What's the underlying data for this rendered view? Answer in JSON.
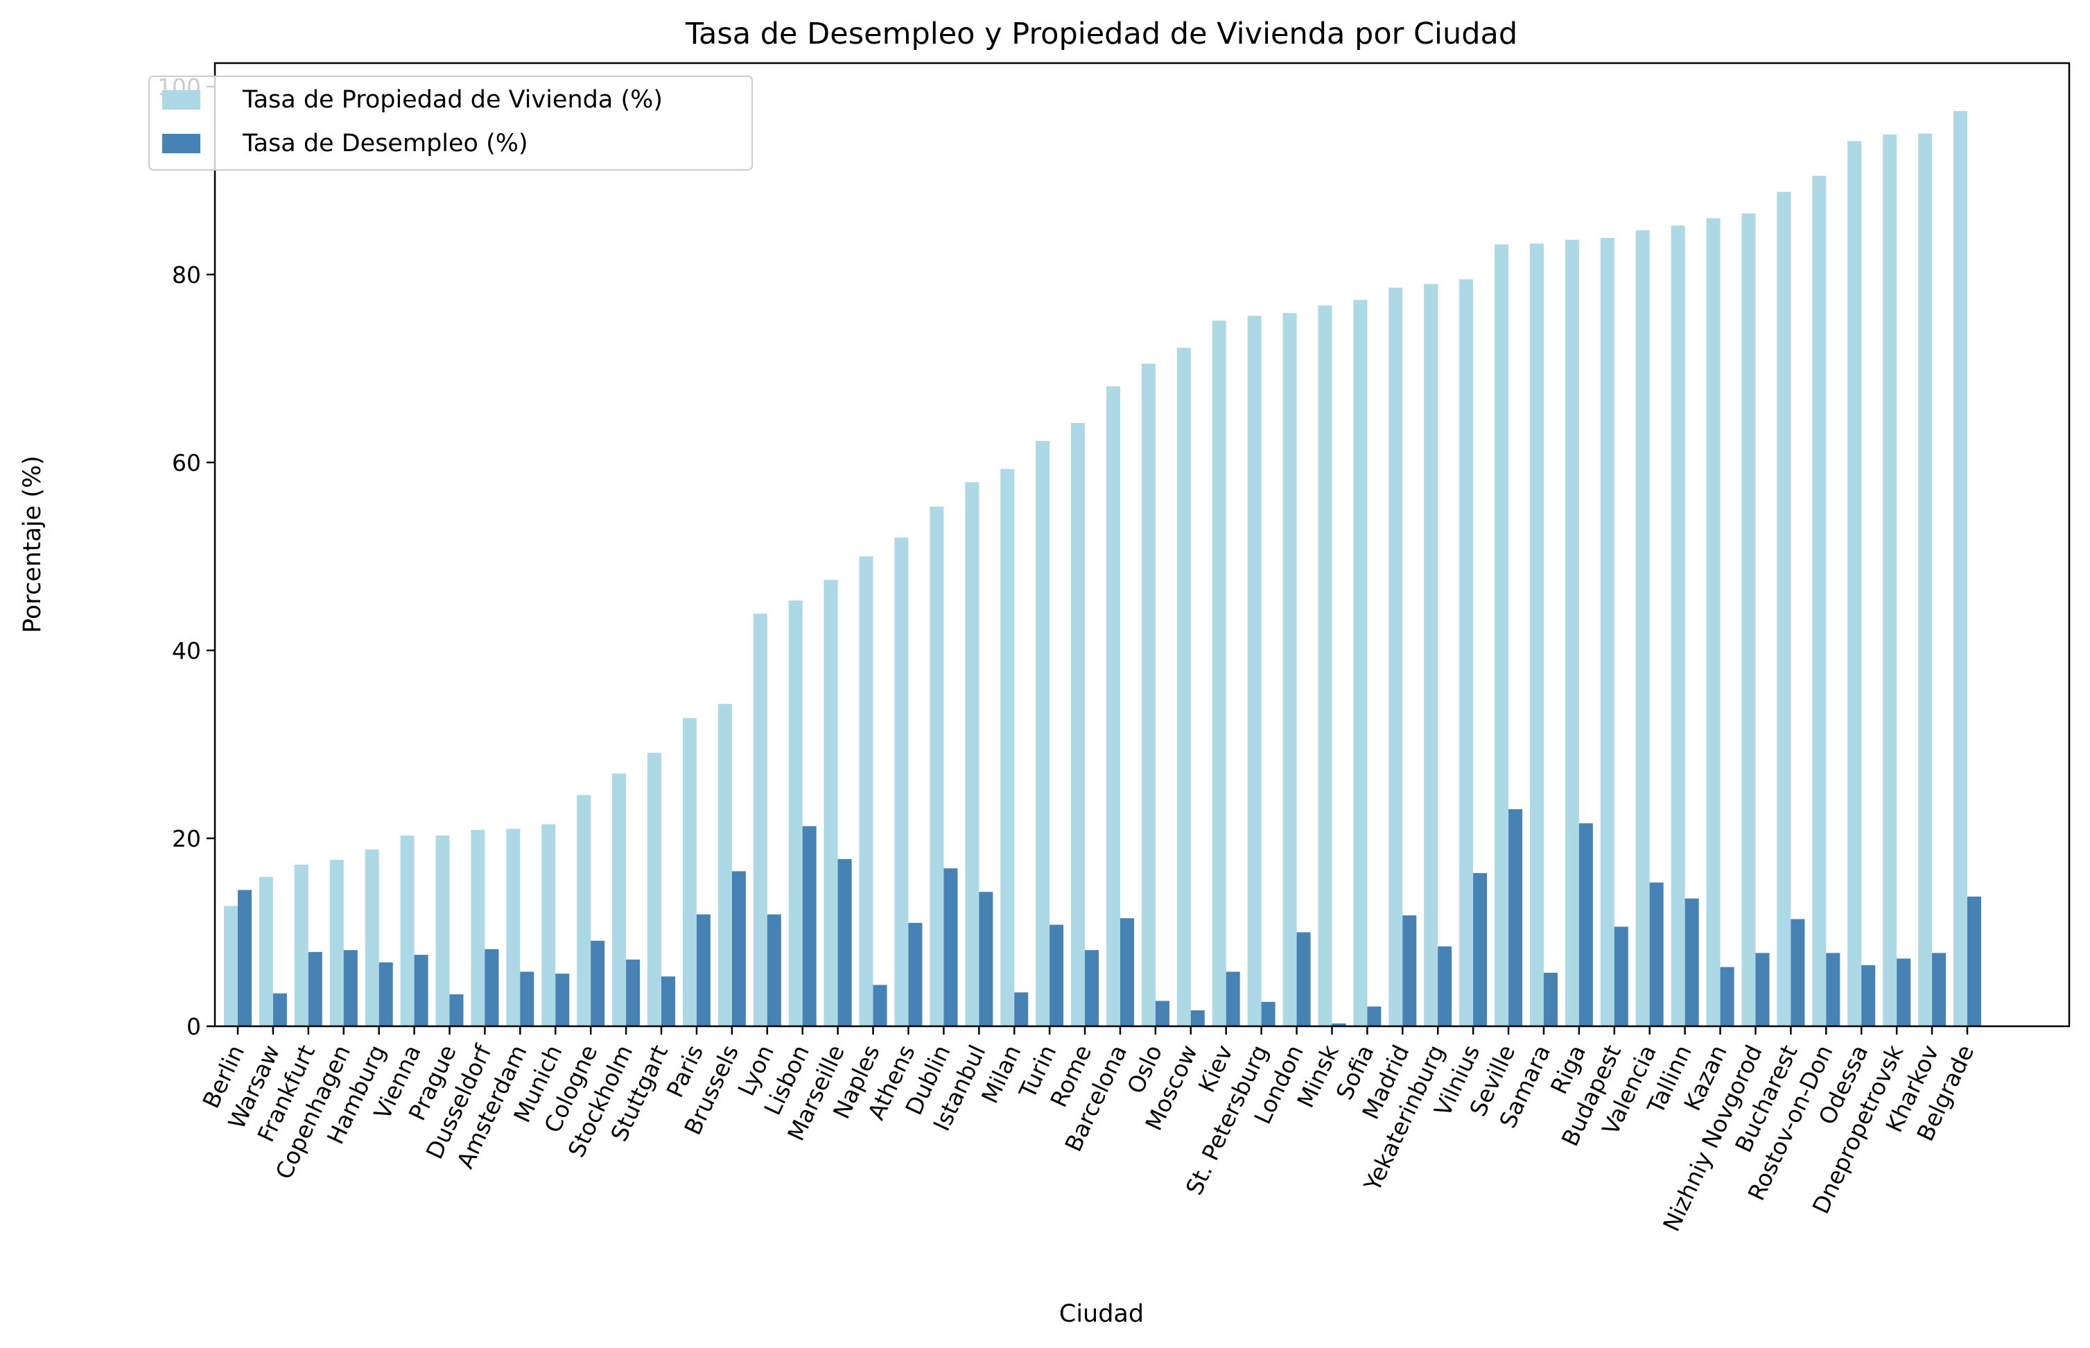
{
  "chart_data": {
    "type": "bar",
    "title": "Tasa de Desempleo y Propiedad de Vivienda por Ciudad",
    "xlabel": "Ciudad",
    "ylabel": "Porcentaje (%)",
    "ylim": [
      0,
      102.5
    ],
    "yticks": [
      0,
      20,
      40,
      60,
      80,
      100
    ],
    "grid": false,
    "legend_position": "top-left",
    "categories": [
      "Berlin",
      "Warsaw",
      "Frankfurt",
      "Copenhagen",
      "Hamburg",
      "Vienna",
      "Prague",
      "Dusseldorf",
      "Amsterdam",
      "Munich",
      "Cologne",
      "Stockholm",
      "Stuttgart",
      "Paris",
      "Brussels",
      "Lyon",
      "Lisbon",
      "Marseille",
      "Naples",
      "Athens",
      "Dublin",
      "Istanbul",
      "Milan",
      "Turin",
      "Rome",
      "Barcelona",
      "Oslo",
      "Moscow",
      "Kiev",
      "St. Petersburg",
      "London",
      "Minsk",
      "Sofia",
      "Madrid",
      "Yekaterinburg",
      "Vilnius",
      "Seville",
      "Samara",
      "Riga",
      "Budapest",
      "Valencia",
      "Tallinn",
      "Kazan",
      "Nizhniy Novgorod",
      "Bucharest",
      "Rostov-on-Don",
      "Odessa",
      "Dnepropetrovsk",
      "Kharkov",
      "Belgrade"
    ],
    "series": [
      {
        "name": "Tasa de Propiedad de Vivienda (%)",
        "color": "#add8e6",
        "values": [
          12.8,
          15.9,
          17.2,
          17.7,
          18.8,
          20.3,
          20.3,
          20.9,
          21.0,
          21.5,
          24.6,
          26.9,
          29.1,
          32.8,
          34.3,
          43.9,
          45.3,
          47.5,
          50.0,
          52.0,
          55.3,
          57.9,
          59.3,
          62.3,
          64.2,
          68.1,
          70.5,
          72.2,
          75.1,
          75.6,
          75.9,
          76.7,
          77.3,
          78.6,
          79.0,
          79.5,
          83.2,
          83.3,
          83.7,
          83.9,
          84.7,
          85.2,
          86.0,
          86.5,
          88.8,
          90.5,
          94.2,
          94.9,
          95.0,
          97.4
        ]
      },
      {
        "name": "Tasa de Desempleo (%)",
        "color": "#4682b4",
        "values": [
          14.5,
          3.5,
          7.9,
          8.1,
          6.8,
          7.6,
          3.4,
          8.2,
          5.8,
          5.6,
          9.1,
          7.1,
          5.3,
          11.9,
          16.5,
          11.9,
          21.3,
          17.8,
          4.4,
          11.0,
          16.8,
          14.3,
          3.6,
          10.8,
          8.1,
          11.5,
          2.7,
          1.7,
          5.8,
          2.6,
          10.0,
          0.3,
          2.1,
          11.8,
          8.5,
          16.3,
          23.1,
          5.7,
          21.6,
          10.6,
          15.3,
          13.6,
          6.3,
          7.8,
          11.4,
          7.8,
          6.5,
          7.2,
          7.8,
          13.8
        ]
      }
    ]
  }
}
